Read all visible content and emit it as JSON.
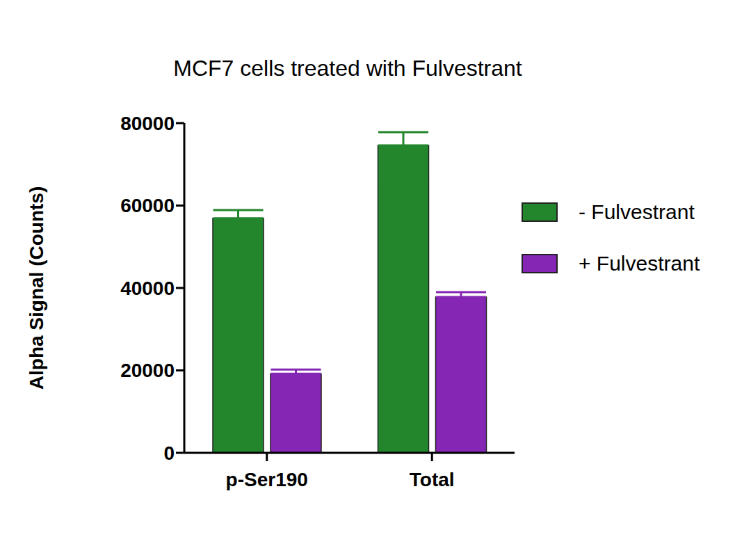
{
  "chart_data": {
    "type": "bar",
    "title": "MCF7 cells treated with Fulvestrant",
    "y_label": "Alpha Signal (Counts)",
    "categories": [
      "p-Ser190",
      "Total"
    ],
    "series": [
      {
        "name": "- Fulvestrant",
        "color": "#23862c",
        "values": [
          56900,
          74600
        ],
        "errors": [
          2000,
          3200
        ]
      },
      {
        "name": "+ Fulvestrant",
        "color": "#8526b4",
        "values": [
          19200,
          37800
        ],
        "errors": [
          1000,
          1200
        ]
      }
    ],
    "ylim": [
      0,
      80000
    ],
    "yticks": [
      0,
      20000,
      40000,
      60000,
      80000
    ],
    "grid": false,
    "legend": "right"
  }
}
